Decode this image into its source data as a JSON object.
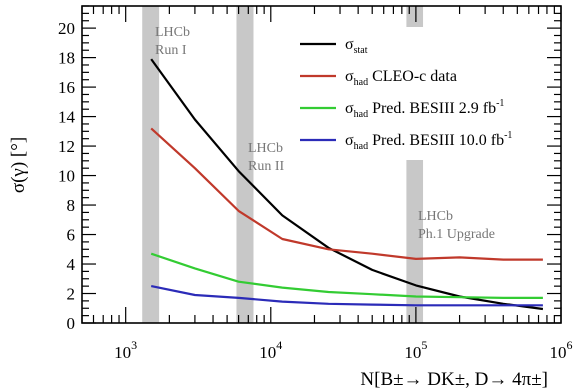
{
  "chart_data": {
    "type": "line",
    "x_scale": "log",
    "xlabel": "N[B±→ DK±, D→ 4π±]",
    "ylabel": "σ(γ) [°]",
    "xlim": [
      500,
      1000000
    ],
    "ylim": [
      0,
      21.5
    ],
    "y_ticks": [
      0,
      2,
      4,
      6,
      8,
      10,
      12,
      14,
      16,
      18,
      20
    ],
    "x_ticks": [
      {
        "value": 1000,
        "base": "10",
        "exp": "3"
      },
      {
        "value": 10000,
        "base": "10",
        "exp": "4"
      },
      {
        "value": 100000,
        "base": "10",
        "exp": "5"
      },
      {
        "value": 1000000,
        "base": "10",
        "exp": "6"
      }
    ],
    "grid": false,
    "legend_position": "top-right",
    "bands": [
      {
        "range": [
          1300,
          1700
        ],
        "label_lines": [
          "LHCb",
          "Run I"
        ]
      },
      {
        "range": [
          5800,
          7600
        ],
        "label_lines": [
          "LHCb",
          "Run II"
        ]
      },
      {
        "range": [
          86000,
          112000
        ],
        "label_lines": [
          "LHCb",
          "Ph.1 Upgrade"
        ]
      }
    ],
    "series": [
      {
        "name_main": "σ",
        "name_sub": "stat",
        "name_tail": "",
        "name_sup": "",
        "color": "#000000",
        "x": [
          1500,
          3000,
          6000,
          12000,
          25000,
          50000,
          100000,
          200000,
          400000,
          750000
        ],
        "y": [
          17.9,
          13.8,
          10.3,
          7.3,
          5.1,
          3.6,
          2.55,
          1.8,
          1.3,
          0.95
        ]
      },
      {
        "name_main": "σ",
        "name_sub": "had",
        "name_tail": " CLEO-c data",
        "name_sup": "",
        "color": "#c0392b",
        "x": [
          1500,
          3000,
          6000,
          12000,
          25000,
          50000,
          100000,
          200000,
          400000,
          750000
        ],
        "y": [
          13.2,
          10.5,
          7.6,
          5.7,
          5.0,
          4.7,
          4.35,
          4.45,
          4.3,
          4.3
        ]
      },
      {
        "name_main": "σ",
        "name_sub": "had",
        "name_tail": " Pred. BESIII  2.9 fb",
        "name_sup": "-1",
        "color": "#33cc33",
        "x": [
          1500,
          3000,
          6000,
          12000,
          25000,
          50000,
          100000,
          200000,
          400000,
          750000
        ],
        "y": [
          4.7,
          3.7,
          2.8,
          2.4,
          2.1,
          1.95,
          1.8,
          1.75,
          1.7,
          1.7
        ]
      },
      {
        "name_main": "σ",
        "name_sub": "had",
        "name_tail": " Pred. BESIII 10.0 fb",
        "name_sup": "-1",
        "color": "#2b2bb8",
        "x": [
          1500,
          3000,
          6000,
          12000,
          25000,
          50000,
          100000,
          200000,
          400000,
          750000
        ],
        "y": [
          2.5,
          1.9,
          1.7,
          1.45,
          1.3,
          1.25,
          1.2,
          1.2,
          1.2,
          1.2
        ]
      }
    ]
  }
}
